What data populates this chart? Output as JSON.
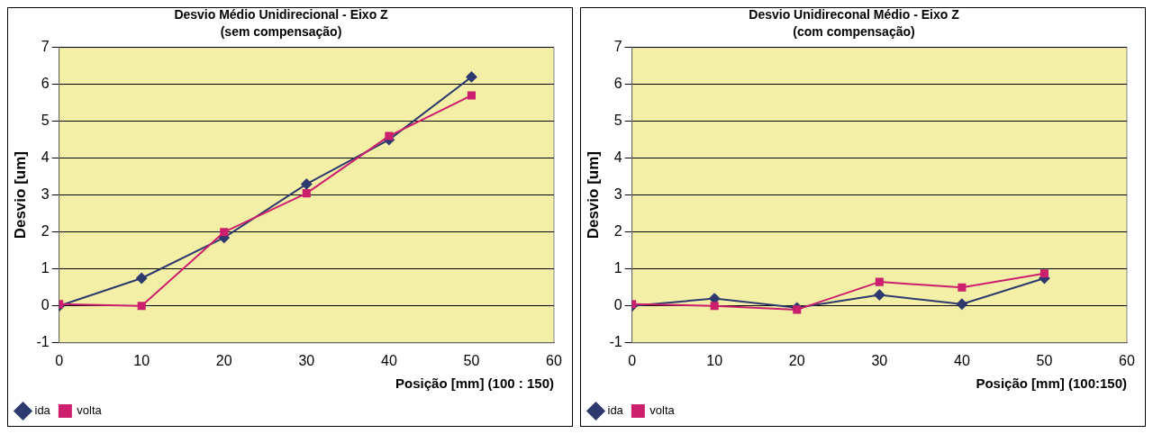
{
  "chart_data": [
    {
      "type": "line",
      "title": "Desvio Médio Unidirecional - Eixo Z",
      "subtitle": "(sem compensação)",
      "xlabel": "Posição [mm] (100 : 150)",
      "ylabel": "Desvio [um]",
      "x": [
        0,
        10,
        20,
        30,
        40,
        50
      ],
      "series": [
        {
          "name": "ida",
          "color": "#2e3a6e",
          "marker": "diamond",
          "values": [
            0,
            0.75,
            1.85,
            3.3,
            4.5,
            6.2
          ]
        },
        {
          "name": "volta",
          "color": "#cc1f6e",
          "marker": "square",
          "values": [
            0.05,
            0,
            2,
            3.05,
            4.6,
            5.7
          ]
        }
      ],
      "xlim": [
        0,
        60
      ],
      "xticks": [
        0,
        10,
        20,
        30,
        40,
        50,
        60
      ],
      "ylim": [
        -1,
        7
      ],
      "yticks": [
        -1,
        0,
        1,
        2,
        3,
        4,
        5,
        6,
        7
      ],
      "grid": "y",
      "legend": "bottom left",
      "line_style": "solid"
    },
    {
      "type": "line",
      "title": "Desvio Unidireconal Médio - Eixo Z",
      "subtitle": "(com compensação)",
      "xlabel": "Posição [mm] (100:150)",
      "ylabel": "Desvio [um]",
      "x": [
        0,
        10,
        20,
        30,
        40,
        50
      ],
      "series": [
        {
          "name": "ida",
          "color": "#2e3a6e",
          "marker": "diamond",
          "values": [
            0,
            0.2,
            -0.05,
            0.3,
            0.05,
            0.75
          ]
        },
        {
          "name": "volta",
          "color": "#cc1f6e",
          "marker": "square",
          "values": [
            0.05,
            0,
            -0.1,
            0.65,
            0.5,
            0.88
          ]
        }
      ],
      "xlim": [
        0,
        60
      ],
      "xticks": [
        0,
        10,
        20,
        30,
        40,
        50,
        60
      ],
      "ylim": [
        -1,
        7
      ],
      "yticks": [
        -1,
        0,
        1,
        2,
        3,
        4,
        5,
        6,
        7
      ],
      "grid": "y",
      "legend": "bottom left",
      "line_style": "solid"
    }
  ]
}
